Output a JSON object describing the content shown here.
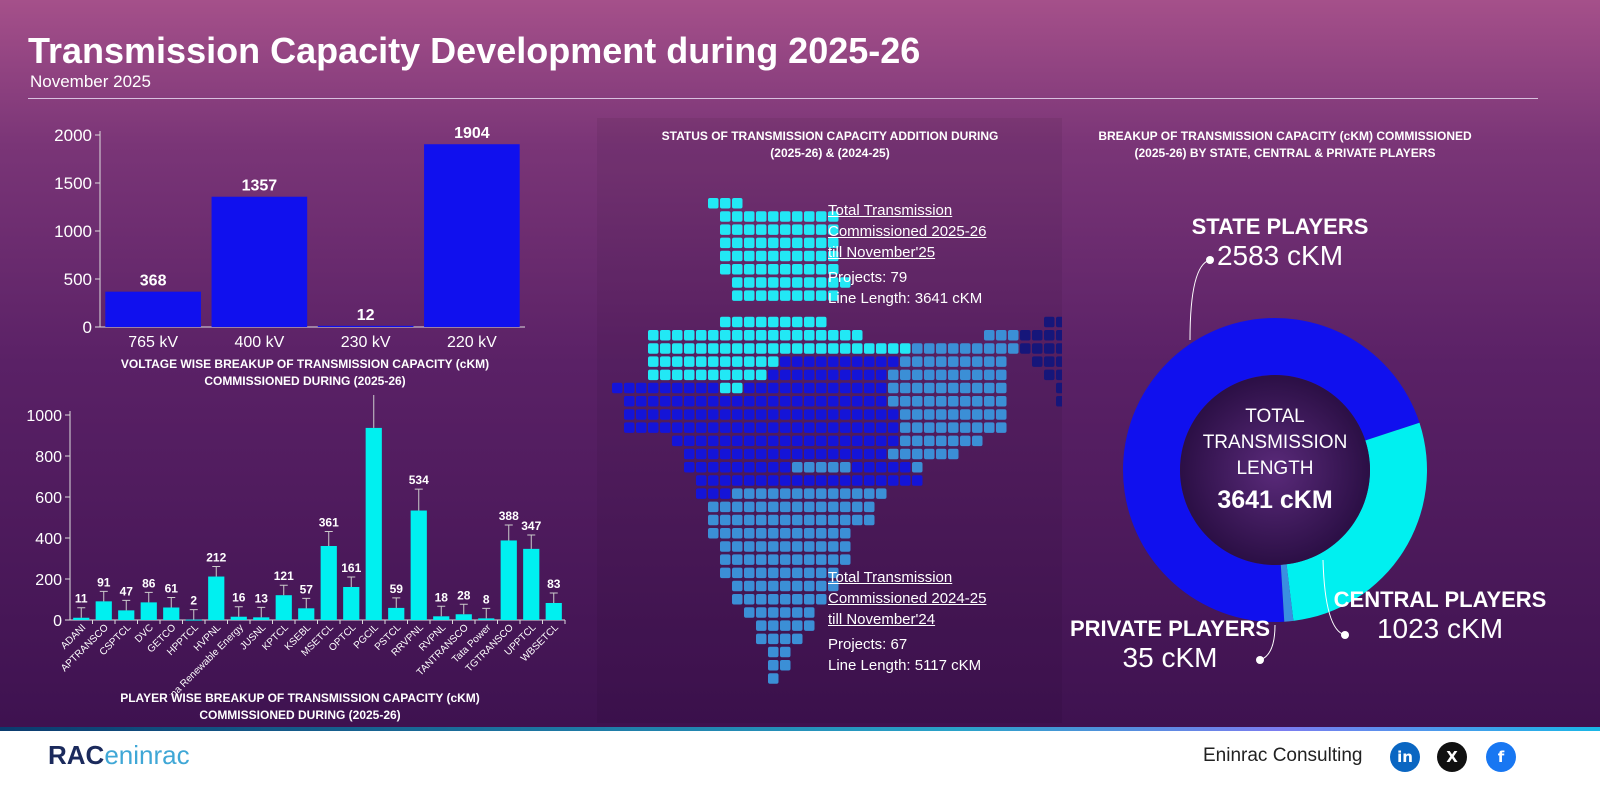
{
  "header": {
    "title": "Transmission Capacity Development during 2025-26",
    "subtitle": "November 2025"
  },
  "chart_data": [
    {
      "type": "bar",
      "title": "VOLTAGE WISE BREAKUP OF TRANSMISSION CAPACITY (cKM) COMMISSIONED DURING (2025-26)",
      "categories": [
        "765 kV",
        "400 kV",
        "230 kV",
        "220 kV"
      ],
      "values": [
        368,
        1357,
        12,
        1904
      ],
      "ylim": [
        0,
        2000
      ],
      "yticks": [
        0,
        500,
        1000,
        1500,
        2000
      ],
      "color": "#1010ee"
    },
    {
      "type": "bar",
      "title": "PLAYER WISE BREAKUP OF TRANSMISSION CAPACITY (cKM) COMMISSIONED DURING (2025-26)",
      "categories": [
        "ADANI",
        "APTRANSCO",
        "CSPTCL",
        "DVC",
        "GETCO",
        "HPPTCL",
        "HVPNL",
        "Juna Renewable Energy",
        "JUSNL",
        "KPTCL",
        "KSEBL",
        "MSETCL",
        "OPTCL",
        "PGCIL",
        "PSTCL",
        "RRVPNL",
        "RVPNL",
        "TANTRANSCO",
        "Tata Power",
        "TGTRANSCO",
        "UPPTCL",
        "WBSETCL"
      ],
      "values": [
        11,
        91,
        47,
        86,
        61,
        2,
        212,
        16,
        13,
        121,
        57,
        361,
        161,
        937,
        59,
        534,
        18,
        28,
        8,
        388,
        347,
        83
      ],
      "ylim": [
        0,
        1000
      ],
      "yticks": [
        0,
        200,
        400,
        600,
        800,
        1000
      ],
      "color": "#00f0f0",
      "error_bars": true
    },
    {
      "type": "pie",
      "title": "BREAKUP OF TRANSMISSION CAPACITY (cKM) COMMISSIONED (2025-26) BY STATE, CENTRAL & PRIVATE PLAYERS",
      "donut": true,
      "slices": [
        {
          "label": "STATE PLAYERS",
          "value": 2583,
          "display": "2583 cKM",
          "color": "#1010ee"
        },
        {
          "label": "CENTRAL PLAYERS",
          "value": 1023,
          "display": "1023 cKM",
          "color": "#00f0f0"
        },
        {
          "label": "PRIVATE PLAYERS",
          "value": 35,
          "display": "35 cKM",
          "color": "#3a8fe0"
        }
      ],
      "center": {
        "line1": "TOTAL",
        "line2": "TRANSMISSION",
        "line3": "LENGTH",
        "total": "3641 cKM"
      }
    }
  ],
  "map": {
    "title": "STATUS OF TRANSMISSION CAPACITY ADDITION DURING (2025-26) & (2024-25)",
    "current": {
      "heading1": "Total Transmission",
      "heading2": "Commissioned 2025-26",
      "heading3": "till November'25",
      "projects": "Projects: 79",
      "length": "Line Length: 3641 cKM"
    },
    "previous": {
      "heading1": "Total Transmission",
      "heading2": "Commissioned 2024-25",
      "heading3": "till November'24",
      "projects": "Projects: 67",
      "length": "Line Length: 5117 cKM"
    },
    "colors": {
      "cyan": "#22e8f5",
      "blue": "#1414d8",
      "steel": "#3b8fd6",
      "navy": "#16167a"
    }
  },
  "footer": {
    "logo": "RAC",
    "logo2": "eninrac",
    "brand": "Eninrac Consulting",
    "social": [
      {
        "name": "linkedin",
        "glyph": "in",
        "color": "#0a66c2"
      },
      {
        "name": "x",
        "glyph": "X",
        "color": "#111111"
      },
      {
        "name": "facebook",
        "glyph": "f",
        "color": "#1877f2"
      }
    ]
  }
}
